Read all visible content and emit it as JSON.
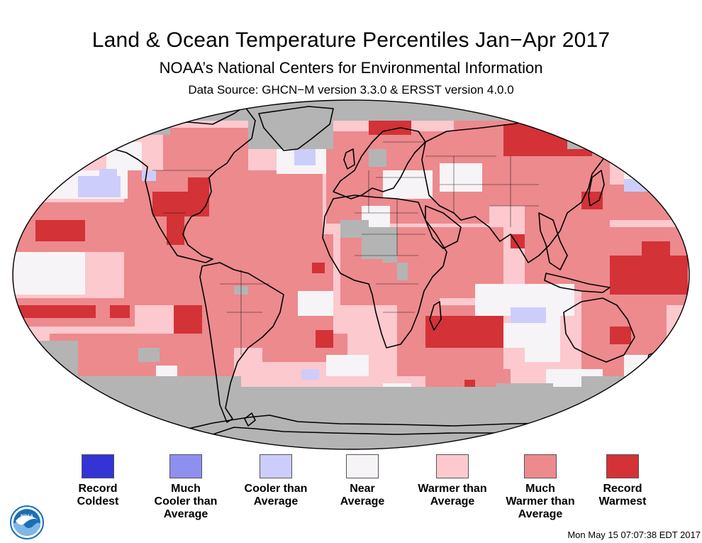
{
  "header": {
    "title": "Land & Ocean Temperature Percentiles Jan−Apr 2017",
    "subtitle": "NOAA’s National Centers for Environmental Information",
    "source": "Data Source: GHCN−M version 3.3.0 & ERSST version 4.0.0"
  },
  "colors": {
    "no_data": "#b4b4b4",
    "outline": "#000000"
  },
  "legend": [
    {
      "label": "Record\nColdest",
      "color": "#3333d6"
    },
    {
      "label": "Much\nCooler than\nAverage",
      "color": "#8f8fef"
    },
    {
      "label": "Cooler than\nAverage",
      "color": "#cdcdfb"
    },
    {
      "label": "Near\nAverage",
      "color": "#f6f4f6"
    },
    {
      "label": "Warmer than\nAverage",
      "color": "#fbc9ce"
    },
    {
      "label": "Much\nWarmer than\nAverage",
      "color": "#ec8a8e"
    },
    {
      "label": "Record\nWarmest",
      "color": "#d33237"
    }
  ],
  "footer": {
    "timestamp": "Mon May 15 07:07:38 EDT 2017"
  },
  "logo": {
    "text": "NOAA",
    "icon": "noaa-logo-icon"
  }
}
